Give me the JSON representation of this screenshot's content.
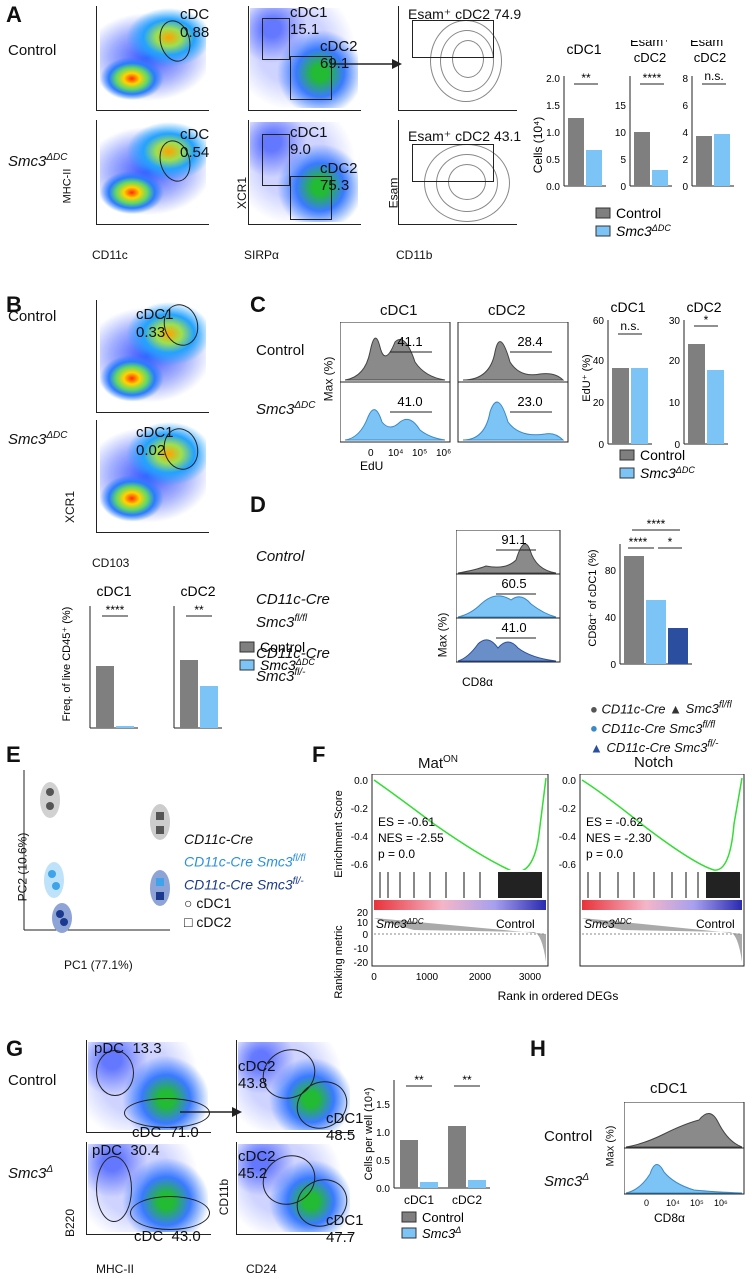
{
  "panels": {
    "A": {
      "letter": "A",
      "row_control": "Control",
      "row_ko": "Smc3",
      "row_ko_sup": "ΔDC",
      "gate_cdc_control": "cDC",
      "gate_cdc_control_val": "0.88",
      "gate_cdc_ko": "cDC",
      "gate_cdc_ko_val": "0.54",
      "gate_cdc1_control": "cDC1",
      "gate_cdc1_control_val": "15.1",
      "gate_cdc2_control": "cDC2",
      "gate_cdc2_control_val": "69.1",
      "gate_cdc1_ko": "cDC1",
      "gate_cdc1_ko_val": "9.0",
      "gate_cdc2_ko": "cDC2",
      "gate_cdc2_ko_val": "75.3",
      "gate_esam_control": "Esam⁺ cDC2 74.9",
      "gate_esam_ko": "Esam⁺ cDC2 43.1",
      "x_axis_1": "CD11c",
      "y_axis_1": "MHC-II",
      "x_axis_2": "SIRPα",
      "y_axis_2": "XCR1",
      "x_axis_3": "CD11b",
      "y_axis_3": "Esam",
      "bar_title_1": "cDC1",
      "bar_title_2a": "Esam⁺",
      "bar_title_2b": "cDC2",
      "bar_title_3a": "Esam⁻",
      "bar_title_3b": "cDC2",
      "bar_ylabel": "Cells (10⁴)",
      "sig_1": "**",
      "sig_2": "****",
      "sig_3": "n.s.",
      "legend_control": "Control",
      "legend_ko": "Smc3",
      "legend_ko_sup": "ΔDC"
    },
    "B": {
      "letter": "B",
      "row_control": "Control",
      "row_ko": "Smc3",
      "row_ko_sup": "ΔDC",
      "gate_control": "cDC1",
      "gate_control_val": "0.33",
      "gate_ko": "cDC1",
      "gate_ko_val": "0.02",
      "x_axis": "CD103",
      "y_axis": "XCR1",
      "bar_title_1": "cDC1",
      "bar_title_2": "cDC2",
      "bar_ylabel": "Freq. of live CD45⁺ (%)",
      "sig_1": "****",
      "sig_2": "**",
      "legend_control": "Control",
      "legend_ko": "Smc3",
      "legend_ko_sup": "ΔDC"
    },
    "C": {
      "letter": "C",
      "col_1": "cDC1",
      "col_2": "cDC2",
      "row_control": "Control",
      "row_ko": "Smc3",
      "row_ko_sup": "ΔDC",
      "val_c1_ctrl": "41.1",
      "val_c2_ctrl": "28.4",
      "val_c1_ko": "41.0",
      "val_c2_ko": "23.0",
      "x_axis": "EdU",
      "y_axis": "Max (%)",
      "bar_title_1": "cDC1",
      "bar_title_2": "cDC2",
      "bar_ylabel": "EdU⁺ (%)",
      "sig_1": "n.s.",
      "sig_2": "*",
      "legend_control": "Control",
      "legend_ko": "Smc3",
      "legend_ko_sup": "ΔDC"
    },
    "D": {
      "letter": "D",
      "row_1": "Control",
      "row_2a": "CD11c-Cre",
      "row_2b": "Smc3",
      "row_2b_sup": "fl/fl",
      "row_3a": "CD11c-Cre",
      "row_3b": "Smc3",
      "row_3b_sup": "fl/-",
      "val_1": "91.1",
      "val_2": "60.5",
      "val_3": "41.0",
      "x_axis": "CD8α",
      "y_axis": "Max (%)",
      "bar_ylabel": "CD8α⁺ of cDC1 (%)",
      "sig_top": "****",
      "sig_left": "****",
      "sig_right": "*",
      "legend_1": "CD11c-Cre",
      "legend_2": "Smc3",
      "legend_2_sup": "fl/fl",
      "legend_3": "CD11c-Cre Smc3",
      "legend_3_sup": "fl/fl",
      "legend_4": "CD11c-Cre Smc3",
      "legend_4_sup": "fl/-"
    },
    "E": {
      "letter": "E",
      "x_axis": "PC1 (77.1%)",
      "y_axis": "PC2 (10.6%)",
      "legend_1": "CD11c-Cre",
      "legend_2": "CD11c-Cre Smc3",
      "legend_2_sup": "fl/fl",
      "legend_3": "CD11c-Cre Smc3",
      "legend_3_sup": "fl/-",
      "shape_1": "cDC1",
      "shape_2": "cDC2"
    },
    "F": {
      "letter": "F",
      "title_1": "Mat",
      "title_1_sup": "ON",
      "title_2": "Notch",
      "stats_1": [
        "ES = -0.61",
        "NES = -2.55",
        "p = 0.0"
      ],
      "stats_2": [
        "ES = -0.62",
        "NES = -2.30",
        "p = 0.0"
      ],
      "y_axis_top": "Enrichment Score",
      "y_axis_bottom": "Ranking metric",
      "x_axis": "Rank in ordered DEGs",
      "left_group": "Smc3",
      "left_group_sup": "ΔDC",
      "right_group": "Control",
      "yticks_top": [
        "0.0",
        "-0.2",
        "-0.4",
        "-0.6"
      ],
      "yticks_bottom": [
        "20",
        "10",
        "0",
        "-10",
        "-20"
      ],
      "xticks": [
        "0",
        "1000",
        "2000",
        "3000"
      ]
    },
    "G": {
      "letter": "G",
      "row_control": "Control",
      "row_ko": "Smc3",
      "row_ko_sup": "Δ",
      "pdc_ctrl": "pDC  13.3",
      "cdc_ctrl": "cDC  71.0",
      "pdc_ko": "pDC  30.4",
      "cdc_ko": "cDC  43.0",
      "cdc2_ctrl": "cDC2",
      "cdc2_ctrl_val": "43.8",
      "cdc1_ctrl": "cDC1",
      "cdc1_ctrl_val": "48.5",
      "cdc2_ko": "cDC2",
      "cdc2_ko_val": "45.2",
      "cdc1_ko": "cDC1",
      "cdc1_ko_val": "47.7",
      "x_axis_1": "MHC-II",
      "y_axis_1": "B220",
      "x_axis_2": "CD24",
      "y_axis_2": "CD11b",
      "bar_ylabel": "Cells per well (10⁴)",
      "bar_cat_1": "cDC1",
      "bar_cat_2": "cDC2",
      "sig_1": "**",
      "sig_2": "**",
      "legend_control": "Control",
      "legend_ko": "Smc3",
      "legend_ko_sup": "Δ"
    },
    "H": {
      "letter": "H",
      "title": "cDC1",
      "row_control": "Control",
      "row_ko": "Smc3",
      "row_ko_sup": "Δ",
      "x_axis": "CD8α",
      "y_axis": "Max (%)"
    }
  },
  "colors": {
    "control_gray": "#7f7f7f",
    "ko_blue": "#7cc4f5",
    "fl_dark": "#2b4f9e",
    "gsea_green": "#33dd33"
  }
}
